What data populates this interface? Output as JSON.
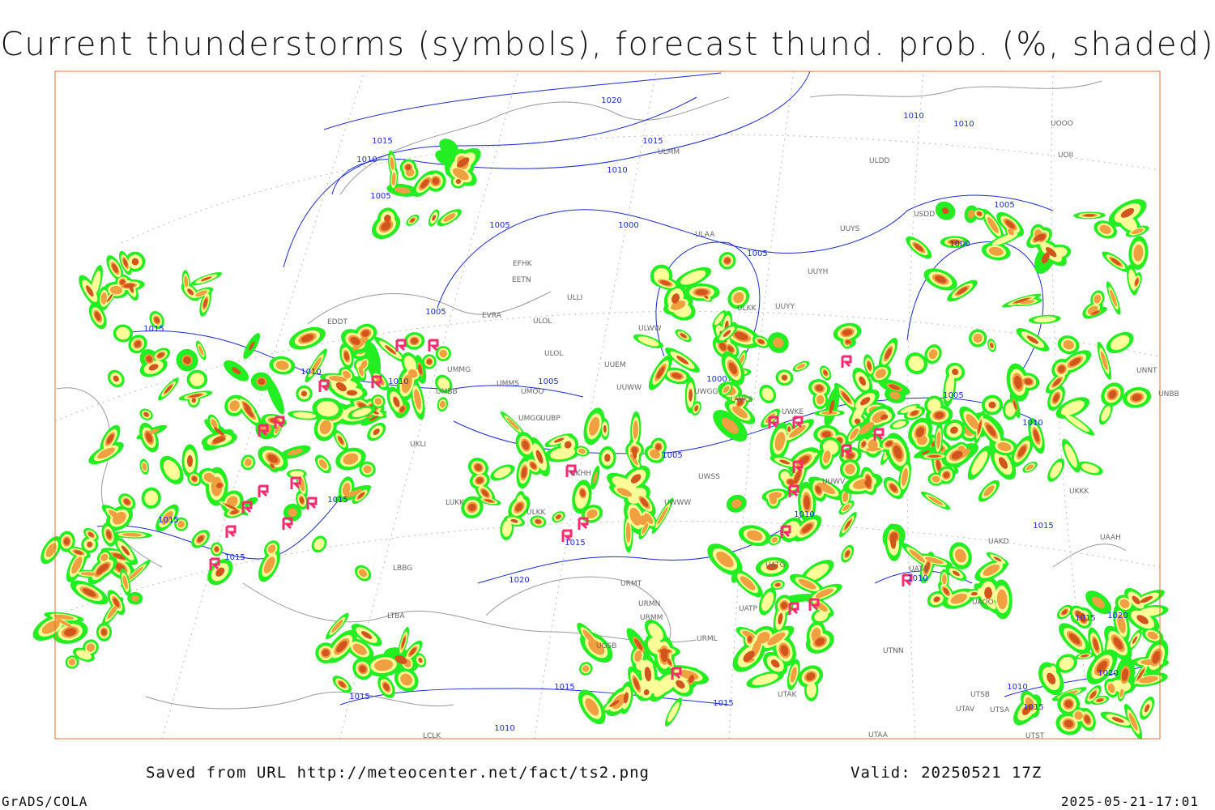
{
  "title": "Current thunderstorms (symbols), forecast thund. prob. (%, shaded)",
  "footer": {
    "source": "Saved from URL http://meteocenter.net/fact/ts2.png",
    "valid": "Valid: 20250521 17Z",
    "software": "GrADS/COLA",
    "timestamp": "2025-05-21-17:01"
  },
  "isobar_labels": [
    "1020",
    "1015",
    "1015",
    "1010",
    "1010",
    "1005",
    "1005",
    "1000",
    "1005",
    "1010",
    "1010",
    "1005",
    "1000",
    "1015",
    "1005",
    "1010",
    "1010",
    "1005",
    "1000",
    "1005",
    "1010",
    "1005",
    "1015",
    "1015",
    "1015",
    "1010",
    "1015",
    "1020",
    "1015",
    "1010",
    "1015",
    "1020",
    "1020",
    "1015",
    "1015",
    "1015",
    "1010",
    "1015",
    "1010"
  ],
  "stations": [
    "ULMM",
    "ULDD",
    "UOOO",
    "UOII",
    "USDD",
    "UUYS",
    "ULAA",
    "UUYH",
    "EFHK",
    "EETN",
    "ULLI",
    "ULKK",
    "UUYY",
    "EVRA",
    "ULOL",
    "EDDT",
    "ULWW",
    "ULOL",
    "UUEM",
    "UMMG",
    "UMMS",
    "UMOO",
    "UUWW",
    "UWGG",
    "UWKS",
    "UMBB",
    "UUBP",
    "UMGG",
    "UKLI",
    "UNNT",
    "UNBB",
    "UWKE",
    "UKHH",
    "UUWV",
    "UWSS",
    "UWWW",
    "ULKK",
    "UKKK",
    "LUKK",
    "UATG",
    "UAKD",
    "UAAH",
    "UATA",
    "UAOO",
    "URMT",
    "URMN",
    "URMM",
    "URML",
    "UATP",
    "UTAK",
    "UGSB",
    "UTSB",
    "UTAV",
    "UTSA",
    "UTAA",
    "UTST",
    "LCLK",
    "UTNN",
    "LTBA",
    "LBBG"
  ]
}
